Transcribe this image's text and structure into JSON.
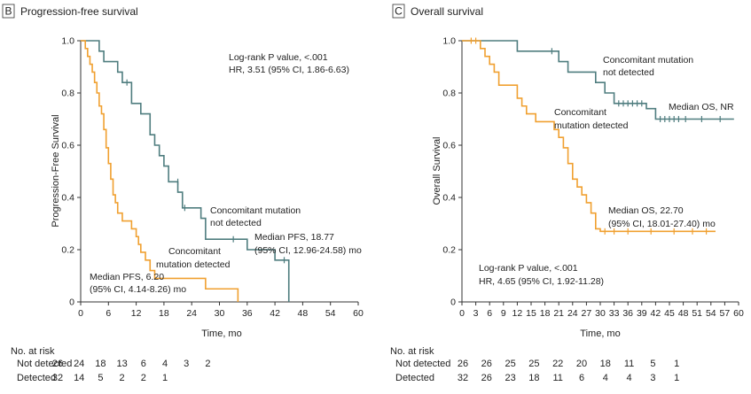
{
  "colors": {
    "not_detected": "#4f7d7f",
    "detected": "#f0a030",
    "axis": "#333333"
  },
  "chart_data": [
    {
      "panel": "B",
      "type": "line",
      "title": "Progression-free survival",
      "xlabel": "Time, mo",
      "ylabel": "Progression-Free Survival",
      "xlim": [
        0,
        60
      ],
      "ylim": [
        0,
        1.0
      ],
      "xticks": [
        "0",
        "6",
        "12",
        "18",
        "24",
        "30",
        "36",
        "42",
        "48",
        "54",
        "60"
      ],
      "yticks": [
        "0",
        "0.2",
        "0.4",
        "0.6",
        "0.8",
        "1.0"
      ],
      "annotations": {
        "stats_line1": "Log-rank P value, <.001",
        "stats_line2": "HR, 3.51 (95% CI, 1.86-6.63)",
        "nd_label_line1": "Concomitant mutation",
        "nd_label_line2": "not detected",
        "nd_median_line1": "Median PFS, 18.77",
        "nd_median_line2": "(95% CI, 12.96-24.58) mo",
        "d_label_line1": "Concomitant",
        "d_label_line2": "mutation detected",
        "d_median_line1": "Median PFS, 6.20",
        "d_median_line2": "(95% CI, 4.14-8.26) mo"
      },
      "series": [
        {
          "name": "Concomitant mutation not detected",
          "color": "#4f7d7f",
          "steps": [
            [
              0,
              1.0
            ],
            [
              4,
              0.96
            ],
            [
              5,
              0.92
            ],
            [
              8,
              0.88
            ],
            [
              9,
              0.84
            ],
            [
              11,
              0.76
            ],
            [
              13,
              0.72
            ],
            [
              15,
              0.64
            ],
            [
              16,
              0.6
            ],
            [
              17,
              0.56
            ],
            [
              18,
              0.52
            ],
            [
              19,
              0.46
            ],
            [
              21,
              0.42
            ],
            [
              22,
              0.36
            ],
            [
              26,
              0.32
            ],
            [
              27,
              0.24
            ],
            [
              36,
              0.2
            ],
            [
              42,
              0.16
            ],
            [
              45,
              0.0
            ]
          ],
          "end": 45,
          "censors": [
            [
              10,
              0.84
            ],
            [
              21,
              0.46
            ],
            [
              22.5,
              0.36
            ],
            [
              33,
              0.24
            ],
            [
              44,
              0.16
            ]
          ]
        },
        {
          "name": "Concomitant mutation detected",
          "color": "#f0a030",
          "steps": [
            [
              0,
              1.0
            ],
            [
              1,
              0.97
            ],
            [
              1.5,
              0.94
            ],
            [
              2,
              0.91
            ],
            [
              2.5,
              0.88
            ],
            [
              3,
              0.84
            ],
            [
              3.5,
              0.8
            ],
            [
              4,
              0.75
            ],
            [
              4.5,
              0.72
            ],
            [
              5,
              0.66
            ],
            [
              5.5,
              0.59
            ],
            [
              6,
              0.53
            ],
            [
              6.5,
              0.47
            ],
            [
              7,
              0.41
            ],
            [
              7.5,
              0.38
            ],
            [
              8,
              0.34
            ],
            [
              9,
              0.31
            ],
            [
              11,
              0.28
            ],
            [
              12,
              0.25
            ],
            [
              12.5,
              0.22
            ],
            [
              13,
              0.19
            ],
            [
              14,
              0.16
            ],
            [
              15,
              0.12
            ],
            [
              16,
              0.09
            ],
            [
              27,
              0.05
            ],
            [
              34,
              0.0
            ]
          ],
          "end": 34,
          "censors": []
        }
      ],
      "at_risk": {
        "header": "No. at risk",
        "rows": [
          {
            "label": "Not detected",
            "values": [
              "26",
              "24",
              "18",
              "13",
              "6",
              "4",
              "3",
              "2"
            ]
          },
          {
            "label": "Detected",
            "values": [
              "32",
              "14",
              "5",
              "2",
              "2",
              "1"
            ]
          }
        ]
      }
    },
    {
      "panel": "C",
      "type": "line",
      "title": "Overall survival",
      "xlabel": "Time, mo",
      "ylabel": "Overall Survival",
      "xlim": [
        0,
        60
      ],
      "ylim": [
        0,
        1.0
      ],
      "xticks": [
        "0",
        "3",
        "6",
        "9",
        "12",
        "15",
        "18",
        "21",
        "24",
        "27",
        "30",
        "33",
        "36",
        "39",
        "42",
        "45",
        "48",
        "51",
        "54",
        "57",
        "60"
      ],
      "yticks": [
        "0",
        "0.2",
        "0.4",
        "0.6",
        "0.8",
        "1.0"
      ],
      "annotations": {
        "nd_label_line1": "Concomitant mutation",
        "nd_label_line2": "not detected",
        "nd_median": "Median OS, NR",
        "d_label_line1": "Concomitant",
        "d_label_line2": "mutation detected",
        "d_median_line1": "Median OS, 22.70",
        "d_median_line2": "(95% CI, 18.01-27.40) mo",
        "stats_line1": "Log-rank P value, <.001",
        "stats_line2": "HR, 4.65 (95% CI, 1.92-11.28)"
      },
      "series": [
        {
          "name": "Concomitant mutation not detected",
          "color": "#4f7d7f",
          "steps": [
            [
              0,
              1.0
            ],
            [
              12,
              0.96
            ],
            [
              21,
              0.92
            ],
            [
              23,
              0.88
            ],
            [
              29,
              0.84
            ],
            [
              31,
              0.8
            ],
            [
              33,
              0.76
            ],
            [
              40,
              0.74
            ],
            [
              42,
              0.7
            ]
          ],
          "end": 59,
          "censors": [
            [
              19.5,
              0.96
            ],
            [
              34,
              0.76
            ],
            [
              35,
              0.76
            ],
            [
              36,
              0.76
            ],
            [
              37,
              0.76
            ],
            [
              38,
              0.76
            ],
            [
              39,
              0.76
            ],
            [
              43,
              0.7
            ],
            [
              44,
              0.7
            ],
            [
              45,
              0.7
            ],
            [
              46,
              0.7
            ],
            [
              47,
              0.7
            ],
            [
              48.5,
              0.7
            ],
            [
              52,
              0.7
            ],
            [
              56,
              0.7
            ]
          ]
        },
        {
          "name": "Concomitant mutation detected",
          "color": "#f0a030",
          "steps": [
            [
              0,
              1.0
            ],
            [
              4,
              0.97
            ],
            [
              5,
              0.94
            ],
            [
              6,
              0.91
            ],
            [
              7,
              0.88
            ],
            [
              8,
              0.83
            ],
            [
              12,
              0.78
            ],
            [
              13,
              0.75
            ],
            [
              14,
              0.72
            ],
            [
              16,
              0.69
            ],
            [
              20,
              0.66
            ],
            [
              21,
              0.63
            ],
            [
              22,
              0.59
            ],
            [
              23,
              0.53
            ],
            [
              24,
              0.47
            ],
            [
              25,
              0.44
            ],
            [
              26,
              0.41
            ],
            [
              27,
              0.38
            ],
            [
              28,
              0.34
            ],
            [
              29,
              0.28
            ],
            [
              30,
              0.27
            ]
          ],
          "end": 55,
          "censors": [
            [
              2,
              1.0
            ],
            [
              3,
              1.0
            ],
            [
              31,
              0.27
            ],
            [
              33,
              0.27
            ],
            [
              36,
              0.27
            ],
            [
              41,
              0.27
            ],
            [
              46,
              0.27
            ],
            [
              50,
              0.27
            ],
            [
              53,
              0.27
            ]
          ]
        }
      ],
      "at_risk": {
        "header": "No. at risk",
        "rows": [
          {
            "label": "Not detected",
            "values": [
              "26",
              "26",
              "25",
              "25",
              "22",
              "20",
              "18",
              "11",
              "5",
              "1"
            ]
          },
          {
            "label": "Detected",
            "values": [
              "32",
              "26",
              "23",
              "18",
              "11",
              "6",
              "4",
              "4",
              "3",
              "1"
            ]
          }
        ]
      }
    }
  ]
}
